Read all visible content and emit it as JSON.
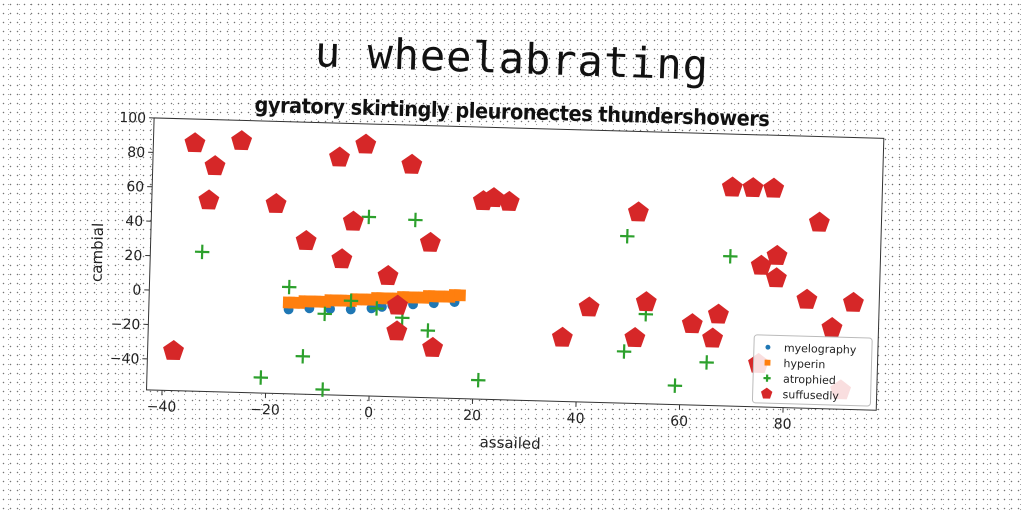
{
  "chart_data": {
    "type": "scatter",
    "title": "u wheelabrating",
    "subtitle": "gyratory skirtingly pleuronectes thundershowers",
    "xlabel": "assailed",
    "ylabel": "cambial",
    "xlim": [
      -43,
      98
    ],
    "ylim": [
      -58,
      100
    ],
    "xticks": [
      -40,
      -20,
      0,
      20,
      40,
      60,
      80
    ],
    "yticks": [
      -40,
      -20,
      0,
      20,
      40,
      60,
      80,
      100
    ],
    "grid": false,
    "legend_position": "lower-right",
    "series": [
      {
        "name": "myelography",
        "marker": "circle",
        "color": "#1f77b4",
        "points": [
          [
            -16,
            -9
          ],
          [
            -12,
            -8
          ],
          [
            -8,
            -8
          ],
          [
            -4,
            -8
          ],
          [
            0,
            -7
          ],
          [
            2,
            -6
          ],
          [
            4,
            -5
          ],
          [
            8,
            -4
          ],
          [
            12,
            -3
          ],
          [
            16,
            -2
          ]
        ]
      },
      {
        "name": "hyperin",
        "marker": "square",
        "color": "#ff7f0e",
        "points": [
          [
            -16,
            -5
          ],
          [
            -15,
            -5
          ],
          [
            -14,
            -5
          ],
          [
            -13,
            -4
          ],
          [
            -12,
            -4
          ],
          [
            -11,
            -4
          ],
          [
            -10,
            -4
          ],
          [
            -9,
            -4
          ],
          [
            -8,
            -3
          ],
          [
            -7,
            -3
          ],
          [
            -6,
            -3
          ],
          [
            -5,
            -3
          ],
          [
            -4,
            -3
          ],
          [
            -3,
            -2
          ],
          [
            -2,
            -2
          ],
          [
            -1,
            -2
          ],
          [
            0,
            -2
          ],
          [
            1,
            -1
          ],
          [
            2,
            -1
          ],
          [
            3,
            -1
          ],
          [
            4,
            -1
          ],
          [
            5,
            -1
          ],
          [
            6,
            0
          ],
          [
            7,
            0
          ],
          [
            8,
            0
          ],
          [
            9,
            0
          ],
          [
            10,
            0
          ],
          [
            11,
            1
          ],
          [
            12,
            1
          ],
          [
            13,
            1
          ],
          [
            14,
            1
          ],
          [
            15,
            1
          ],
          [
            16,
            2
          ],
          [
            17,
            2
          ]
        ]
      },
      {
        "name": "atrophied",
        "marker": "plus",
        "color": "#2ca02c",
        "points": [
          [
            -33,
            23
          ],
          [
            -16,
            4
          ],
          [
            -13,
            -36
          ],
          [
            -21,
            -49
          ],
          [
            -9,
            -11
          ],
          [
            -9,
            -55
          ],
          [
            -4,
            -3
          ],
          [
            -1,
            46
          ],
          [
            1,
            -7
          ],
          [
            6,
            -12
          ],
          [
            8,
            45
          ],
          [
            11,
            -19
          ],
          [
            21,
            -47
          ],
          [
            49,
            39
          ],
          [
            49,
            -28
          ],
          [
            53,
            -6
          ],
          [
            59,
            -47
          ],
          [
            65,
            -33
          ],
          [
            69,
            29
          ]
        ]
      },
      {
        "name": "suffusedly",
        "marker": "pentagon",
        "color": "#d62728",
        "points": [
          [
            -38,
            -35
          ],
          [
            -35,
            86
          ],
          [
            -31,
            73
          ],
          [
            -32,
            53
          ],
          [
            -26,
            88
          ],
          [
            -19,
            52
          ],
          [
            -13,
            31
          ],
          [
            -7,
            80
          ],
          [
            -6,
            21
          ],
          [
            -4,
            43
          ],
          [
            -2,
            88
          ],
          [
            3,
            12
          ],
          [
            5,
            -5
          ],
          [
            5,
            -20
          ],
          [
            7,
            77
          ],
          [
            11,
            32
          ],
          [
            12,
            -29
          ],
          [
            21,
            57
          ],
          [
            23,
            59
          ],
          [
            26,
            57
          ],
          [
            37,
            -21
          ],
          [
            42,
            -3
          ],
          [
            51,
            -20
          ],
          [
            51,
            53
          ],
          [
            53,
            1
          ],
          [
            62,
            -11
          ],
          [
            66,
            -19
          ],
          [
            67,
            -5
          ],
          [
            69,
            69
          ],
          [
            73,
            69
          ],
          [
            75,
            24
          ],
          [
            75,
            -33
          ],
          [
            77,
            69
          ],
          [
            78,
            30
          ],
          [
            78,
            17
          ],
          [
            84,
            5
          ],
          [
            86,
            50
          ],
          [
            89,
            -11
          ],
          [
            93,
            4
          ],
          [
            91,
            -47
          ]
        ]
      }
    ]
  }
}
